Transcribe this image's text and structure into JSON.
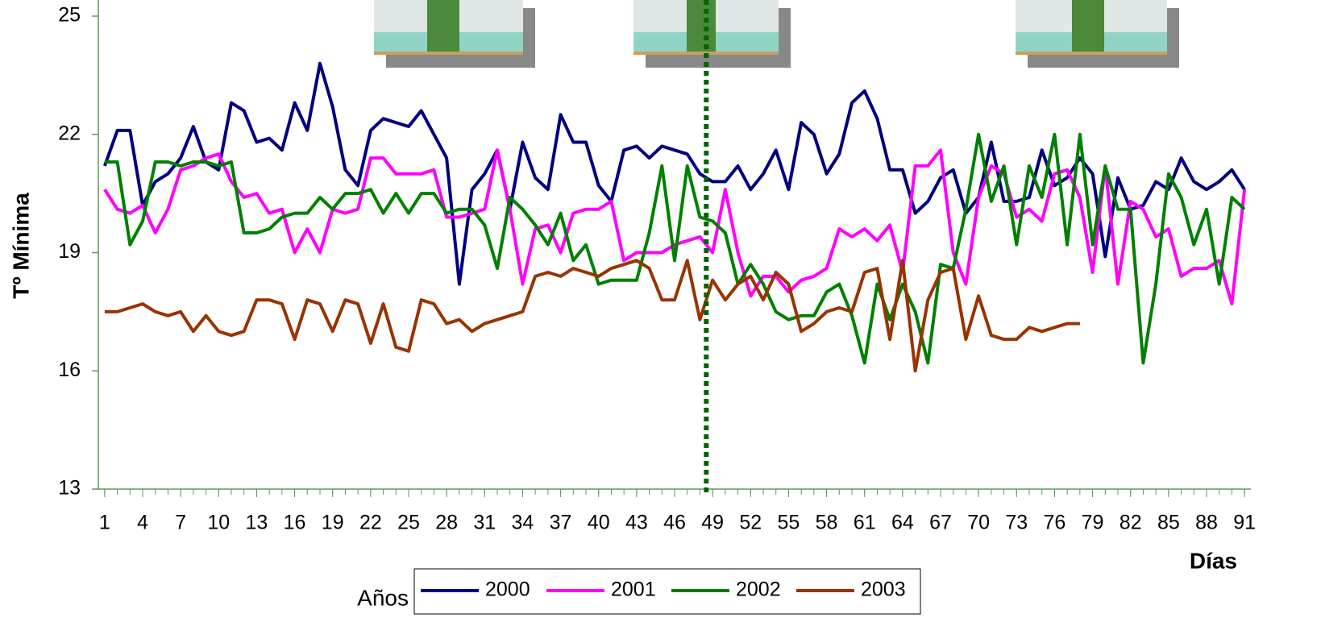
{
  "chart_data": {
    "type": "line",
    "y_label": "Tº Mínima",
    "x_label": "Días",
    "legend_title": "Años",
    "x": [
      1,
      2,
      3,
      4,
      5,
      6,
      7,
      8,
      9,
      10,
      11,
      12,
      13,
      14,
      15,
      16,
      17,
      18,
      19,
      20,
      21,
      22,
      23,
      24,
      25,
      26,
      27,
      28,
      29,
      30,
      31,
      32,
      33,
      34,
      35,
      36,
      37,
      38,
      39,
      40,
      41,
      42,
      43,
      44,
      45,
      46,
      47,
      48,
      49,
      50,
      51,
      52,
      53,
      54,
      55,
      56,
      57,
      58,
      59,
      60,
      61,
      62,
      63,
      64,
      65,
      66,
      67,
      68,
      69,
      70,
      71,
      72,
      73,
      74,
      75,
      76,
      77,
      78,
      79,
      80,
      81,
      82,
      83,
      84,
      85,
      86,
      87,
      88,
      89,
      90,
      91
    ],
    "xlim": [
      0.5,
      91.5
    ],
    "xticks": [
      1,
      4,
      7,
      10,
      13,
      16,
      19,
      22,
      25,
      28,
      31,
      34,
      37,
      40,
      43,
      46,
      49,
      52,
      55,
      58,
      61,
      64,
      67,
      70,
      73,
      76,
      79,
      82,
      85,
      88,
      91
    ],
    "ylim": [
      13,
      25
    ],
    "yticks": [
      13,
      16,
      19,
      22,
      25
    ],
    "vline_x": 48.5,
    "vline_color": "#006400",
    "series": [
      {
        "name": "2000",
        "color": "#000080",
        "values": [
          21.2,
          22.1,
          22.1,
          20.2,
          20.8,
          21.0,
          21.4,
          22.2,
          21.3,
          21.1,
          22.8,
          22.6,
          21.8,
          21.9,
          21.6,
          22.8,
          22.1,
          23.8,
          22.7,
          21.1,
          20.7,
          22.1,
          22.4,
          22.3,
          22.2,
          22.6,
          22.0,
          21.4,
          18.2,
          20.6,
          21.0,
          21.6,
          20.1,
          21.8,
          20.9,
          20.6,
          22.5,
          21.8,
          21.8,
          20.7,
          20.3,
          21.6,
          21.7,
          21.4,
          21.7,
          21.6,
          21.5,
          21.0,
          20.8,
          20.8,
          21.2,
          20.6,
          21.0,
          21.6,
          20.6,
          22.3,
          22.0,
          21.0,
          21.5,
          22.8,
          23.1,
          22.4,
          21.1,
          21.1,
          20.0,
          20.3,
          20.9,
          21.1,
          20.0,
          20.4,
          21.8,
          20.3,
          20.3,
          20.4,
          21.6,
          20.7,
          20.9,
          21.4,
          21.0,
          18.9,
          20.9,
          20.1,
          20.2,
          20.8,
          20.6,
          21.4,
          20.8,
          20.6,
          20.8,
          21.1,
          20.6
        ]
      },
      {
        "name": "2001",
        "color": "#ff00ff",
        "values": [
          20.6,
          20.1,
          20.0,
          20.2,
          19.5,
          20.1,
          21.1,
          21.2,
          21.4,
          21.5,
          20.8,
          20.4,
          20.5,
          20.0,
          20.1,
          19.0,
          19.6,
          19.0,
          20.1,
          20.0,
          20.1,
          21.4,
          21.4,
          21.0,
          21.0,
          21.0,
          21.1,
          19.9,
          19.9,
          20.0,
          20.1,
          21.6,
          20.1,
          18.2,
          19.6,
          19.7,
          19.0,
          20.0,
          20.1,
          20.1,
          20.3,
          18.8,
          19.0,
          19.0,
          19.0,
          19.2,
          19.3,
          19.4,
          19.0,
          20.6,
          19.0,
          17.9,
          18.4,
          18.4,
          18.0,
          18.3,
          18.4,
          18.6,
          19.6,
          19.4,
          19.6,
          19.3,
          19.7,
          18.5,
          21.2,
          21.2,
          21.6,
          19.0,
          18.2,
          20.4,
          21.2,
          21.0,
          19.9,
          20.1,
          19.8,
          21.0,
          21.1,
          20.4,
          18.5,
          21.2,
          18.2,
          20.3,
          20.1,
          19.4,
          19.6,
          18.4,
          18.6,
          18.6,
          18.8,
          17.7,
          20.6
        ]
      },
      {
        "name": "2002",
        "color": "#008000",
        "values": [
          21.3,
          21.3,
          19.2,
          19.8,
          21.3,
          21.3,
          21.2,
          21.3,
          21.3,
          21.2,
          21.3,
          19.5,
          19.5,
          19.6,
          19.9,
          20.0,
          20.0,
          20.4,
          20.1,
          20.5,
          20.5,
          20.6,
          20.0,
          20.5,
          20.0,
          20.5,
          20.5,
          20.0,
          20.1,
          20.1,
          19.7,
          18.6,
          20.4,
          20.1,
          19.7,
          19.2,
          20.0,
          18.8,
          19.2,
          18.2,
          18.3,
          18.3,
          18.3,
          19.5,
          21.2,
          18.8,
          21.2,
          19.9,
          19.8,
          19.5,
          18.2,
          18.7,
          18.2,
          17.5,
          17.3,
          17.4,
          17.4,
          18.0,
          18.2,
          17.4,
          16.2,
          18.2,
          17.3,
          18.2,
          17.5,
          16.2,
          18.7,
          18.6,
          20.1,
          22.0,
          20.3,
          21.2,
          19.2,
          21.2,
          20.4,
          22.0,
          19.2,
          22.0,
          19.2,
          21.2,
          20.1,
          20.1,
          16.2,
          18.2,
          21.0,
          20.4,
          19.2,
          20.1,
          18.2,
          20.4,
          20.1
        ]
      },
      {
        "name": "2003",
        "color": "#993300",
        "values": [
          17.5,
          17.5,
          17.6,
          17.7,
          17.5,
          17.4,
          17.5,
          17.0,
          17.4,
          17.0,
          16.9,
          17.0,
          17.8,
          17.8,
          17.7,
          16.8,
          17.8,
          17.7,
          17.0,
          17.8,
          17.7,
          16.7,
          17.7,
          16.6,
          16.5,
          17.8,
          17.7,
          17.2,
          17.3,
          17.0,
          17.2,
          17.3,
          17.4,
          17.5,
          18.4,
          18.5,
          18.4,
          18.6,
          18.5,
          18.4,
          18.6,
          18.7,
          18.8,
          18.6,
          17.8,
          17.8,
          18.8,
          17.3,
          18.3,
          17.8,
          18.2,
          18.4,
          17.8,
          18.5,
          18.2,
          17.0,
          17.2,
          17.5,
          17.6,
          17.5,
          18.5,
          18.6,
          16.8,
          18.8,
          16.0,
          17.8,
          18.5,
          18.6,
          16.8,
          17.9,
          16.9,
          16.8,
          16.8,
          17.1,
          17.0,
          17.1,
          17.2,
          17.2,
          null,
          null,
          null,
          null,
          null,
          null,
          null,
          null,
          null,
          null,
          null,
          null,
          null
        ]
      }
    ]
  }
}
